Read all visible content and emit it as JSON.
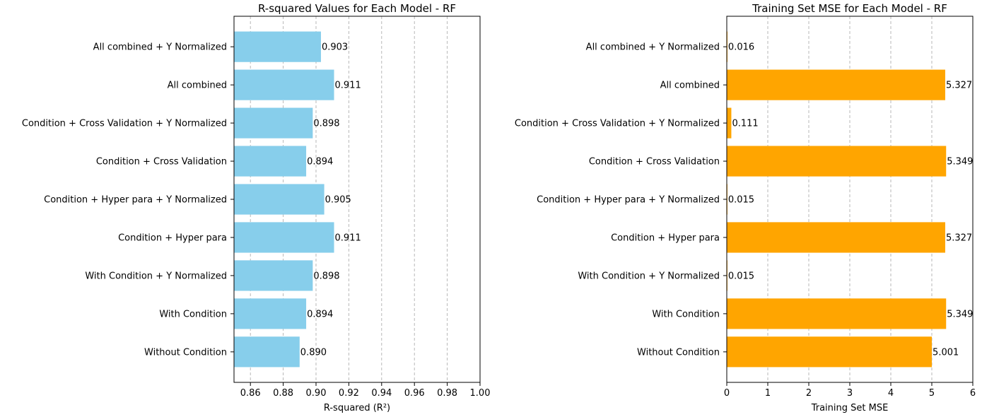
{
  "chart_data": [
    {
      "type": "bar",
      "orientation": "horizontal",
      "title": "R-squared Values for Each Model - RF",
      "xlabel": "R-squared (R²)",
      "ylabel": "",
      "xlim": [
        0.85,
        1.0
      ],
      "xticks": [
        "0.86",
        "0.88",
        "0.90",
        "0.92",
        "0.94",
        "0.96",
        "0.98",
        "1.00"
      ],
      "grid": "x-dashed",
      "bar_color": "#87CEEB",
      "categories": [
        "Without Condition",
        "With Condition",
        "With Condition + Y Normalized",
        "Condition + Hyper para",
        "Condition + Hyper para + Y Normalized",
        "Condition + Cross Validation",
        "Condition + Cross Validation + Y Normalized",
        "All combined",
        "All combined + Y Normalized"
      ],
      "values": [
        0.89,
        0.894,
        0.898,
        0.911,
        0.905,
        0.894,
        0.898,
        0.911,
        0.903
      ],
      "value_labels": [
        "0.890",
        "0.894",
        "0.898",
        "0.911",
        "0.905",
        "0.894",
        "0.898",
        "0.911",
        "0.903"
      ]
    },
    {
      "type": "bar",
      "orientation": "horizontal",
      "title": "Training Set MSE for Each Model - RF",
      "xlabel": "Training Set MSE",
      "ylabel": "",
      "xlim": [
        0,
        6
      ],
      "xticks": [
        "0",
        "1",
        "2",
        "3",
        "4",
        "5",
        "6"
      ],
      "grid": "x-dashed",
      "bar_color": "#FFA500",
      "categories": [
        "Without Condition",
        "With Condition",
        "With Condition + Y Normalized",
        "Condition + Hyper para",
        "Condition + Hyper para + Y Normalized",
        "Condition + Cross Validation",
        "Condition + Cross Validation + Y Normalized",
        "All combined",
        "All combined + Y Normalized"
      ],
      "values": [
        5.001,
        5.349,
        0.015,
        5.327,
        0.015,
        5.349,
        0.111,
        5.327,
        0.016
      ],
      "value_labels": [
        "5.001",
        "5.349",
        "0.015",
        "5.327",
        "0.015",
        "5.349",
        "0.111",
        "5.327",
        "0.016"
      ]
    }
  ]
}
